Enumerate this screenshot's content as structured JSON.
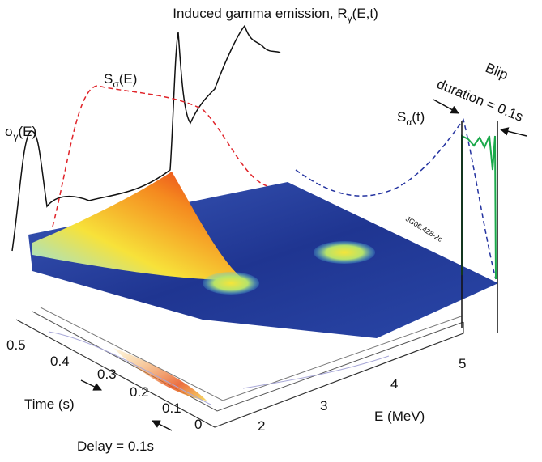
{
  "title": {
    "text": "Induced gamma emission, R",
    "sub": "γ",
    "rest": "(E,t)"
  },
  "labels": {
    "sigma_gamma": {
      "base": "σ",
      "sub": "γ",
      "rest": "(E)"
    },
    "s_sigma": {
      "base": "S",
      "sub": "σ",
      "rest": "(E)"
    },
    "s_alpha": {
      "base": "S",
      "sub": "α",
      "rest": "(t)"
    },
    "blip": [
      "Blip",
      "duration = 0.1s"
    ],
    "figure_id": "JG06.428-2c",
    "time_axis": "Time (s)",
    "delay": "Delay = 0.1s",
    "energy_axis": "E (MeV)"
  },
  "time_ticks": [
    "0.5",
    "0.4",
    "0.3",
    "0.2",
    "0.1",
    "0"
  ],
  "energy_ticks": [
    "2",
    "3",
    "4",
    "5"
  ]
}
